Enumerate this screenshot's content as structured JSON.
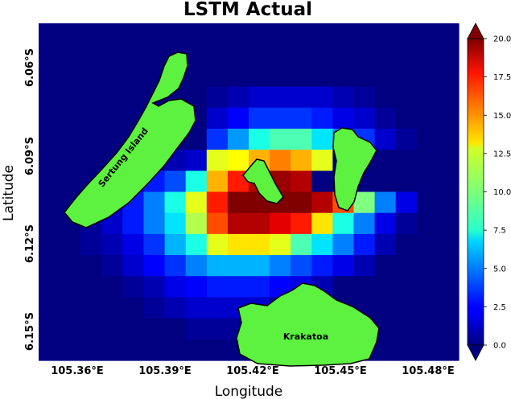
{
  "chart_data": {
    "type": "heatmap",
    "title": "LSTM Actual",
    "xlabel": "Longitude",
    "ylabel": "Latitude",
    "x_ticks": [
      "105.36°E",
      "105.39°E",
      "105.42°E",
      "105.45°E",
      "105.48°E"
    ],
    "y_ticks": [
      "6.06°S",
      "6.09°S",
      "6.12°S",
      "6.15°S"
    ],
    "colorbar": {
      "min": 0.0,
      "max": 20.0,
      "ticks": [
        "0.0",
        "2.5",
        "5.0",
        "7.5",
        "10.0",
        "12.5",
        "15.0",
        "17.5",
        "20.0"
      ],
      "colormap": "jet",
      "extend": "both"
    },
    "columns": 20,
    "rows": 16,
    "grid_values": [
      [
        0,
        0,
        0,
        0,
        0,
        0,
        0,
        0,
        0,
        0,
        0,
        0,
        0,
        0,
        0,
        0,
        0,
        0,
        0,
        0
      ],
      [
        0,
        0,
        0,
        0,
        0,
        0,
        0,
        0,
        0,
        0,
        0,
        0,
        0,
        0,
        0,
        0,
        0,
        0,
        0,
        0
      ],
      [
        0,
        0,
        0,
        0,
        0,
        0,
        0,
        0,
        0,
        0,
        0,
        0,
        0,
        0,
        0,
        0,
        0,
        0,
        0,
        0
      ],
      [
        0,
        0,
        0,
        0,
        0,
        0,
        0,
        0,
        0.5,
        1,
        1.5,
        1.5,
        1.5,
        1.5,
        1,
        0.5,
        0,
        0,
        0,
        0
      ],
      [
        0,
        0,
        0,
        0,
        0,
        0,
        0,
        0,
        1.5,
        2.5,
        3.5,
        3.5,
        3.5,
        3,
        2,
        1.5,
        0.5,
        0,
        0,
        0
      ],
      [
        0,
        0,
        0,
        0,
        0,
        0,
        0,
        0,
        3.5,
        5.5,
        8,
        9,
        9,
        7,
        5,
        3.5,
        1.5,
        0.5,
        0,
        0
      ],
      [
        0,
        0,
        0,
        0,
        0,
        0.5,
        1,
        1.5,
        12,
        12.5,
        14,
        15,
        14,
        12,
        0,
        0,
        0,
        0,
        0,
        0
      ],
      [
        0,
        0,
        0,
        0.5,
        1.5,
        3,
        4,
        8,
        14,
        17,
        19,
        19.5,
        19,
        0,
        0,
        0,
        0,
        0,
        0,
        0
      ],
      [
        0,
        0,
        0.5,
        1.5,
        3,
        5,
        8,
        12,
        17,
        20,
        20,
        20,
        20,
        19,
        16,
        10,
        5,
        2,
        0,
        0
      ],
      [
        0,
        0,
        0.5,
        1.5,
        3,
        5,
        7,
        11,
        16,
        19,
        19,
        18,
        17,
        13,
        8,
        5,
        2,
        0.5,
        0,
        0
      ],
      [
        0,
        0,
        0.5,
        1,
        2,
        3.5,
        6,
        8,
        12,
        13,
        13,
        12,
        9,
        7,
        5,
        3,
        1,
        0,
        0,
        0
      ],
      [
        0,
        0,
        0,
        0.5,
        1.5,
        2.5,
        3.5,
        5,
        6,
        6,
        6,
        5,
        4,
        3,
        2,
        1,
        0,
        0,
        0,
        0
      ],
      [
        0,
        0,
        0,
        0,
        0.5,
        1,
        2,
        2.5,
        3,
        3,
        3,
        2.5,
        2,
        1,
        0,
        0,
        0,
        0,
        0,
        0
      ],
      [
        0,
        0,
        0,
        0,
        0,
        0.5,
        1,
        1.5,
        1.5,
        1.5,
        1.5,
        0.5,
        0,
        0,
        0,
        0,
        0,
        0,
        0,
        0
      ],
      [
        0,
        0,
        0,
        0,
        0,
        0,
        0,
        0.5,
        0.5,
        0.5,
        0.5,
        0,
        0,
        0,
        0,
        0,
        0,
        0,
        0,
        0
      ],
      [
        0,
        0,
        0,
        0,
        0,
        0,
        0,
        0,
        0,
        0,
        0,
        0,
        0,
        0,
        0,
        0,
        0,
        0,
        0,
        0
      ]
    ],
    "land_color": "#5cf23f",
    "annotations": [
      "Sertung Island",
      "Krakatoa"
    ]
  }
}
